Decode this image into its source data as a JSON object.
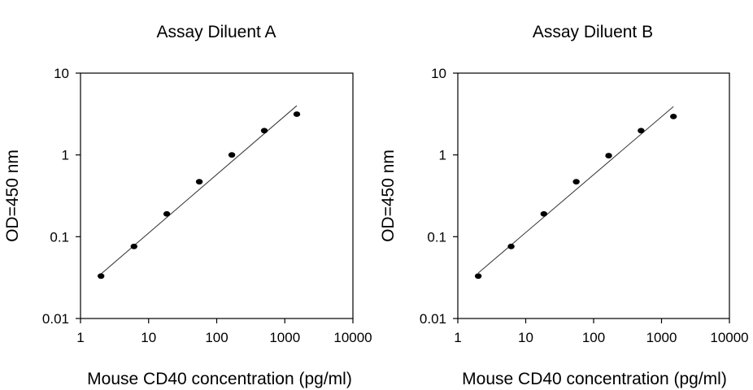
{
  "chart_data": [
    {
      "type": "scatter",
      "title": "Assay Diluent A",
      "xlabel": "Mouse CD40 concentration (pg/ml)",
      "ylabel": "OD=450 nm",
      "xscale": "log",
      "yscale": "log",
      "xlim": [
        1,
        10000
      ],
      "ylim": [
        0.01,
        10
      ],
      "xticks": [
        "1",
        "10",
        "100",
        "1000",
        "10000"
      ],
      "yticks": [
        "0.01",
        "0.1",
        "1",
        "10"
      ],
      "grid": false,
      "points": {
        "x": [
          2.0,
          6.1,
          18.5,
          55.5,
          166.7,
          500,
          1500
        ],
        "y": [
          0.033,
          0.076,
          0.19,
          0.47,
          1.0,
          1.98,
          3.15
        ]
      },
      "fit_line": {
        "x": [
          2.0,
          1500
        ],
        "y": [
          0.035,
          4.0
        ]
      }
    },
    {
      "type": "scatter",
      "title": "Assay Diluent B",
      "xlabel": "Mouse CD40 concentration (pg/ml)",
      "ylabel": "OD=450 nm",
      "xscale": "log",
      "yscale": "log",
      "xlim": [
        1,
        10000
      ],
      "ylim": [
        0.01,
        10
      ],
      "xticks": [
        "1",
        "10",
        "100",
        "1000",
        "10000"
      ],
      "yticks": [
        "0.01",
        "0.1",
        "1",
        "10"
      ],
      "grid": false,
      "points": {
        "x": [
          2.0,
          6.1,
          18.5,
          55.5,
          166.7,
          500,
          1500
        ],
        "y": [
          0.033,
          0.076,
          0.19,
          0.47,
          0.98,
          1.98,
          2.95
        ]
      },
      "fit_line": {
        "x": [
          2.0,
          1500
        ],
        "y": [
          0.036,
          3.9
        ]
      }
    }
  ]
}
